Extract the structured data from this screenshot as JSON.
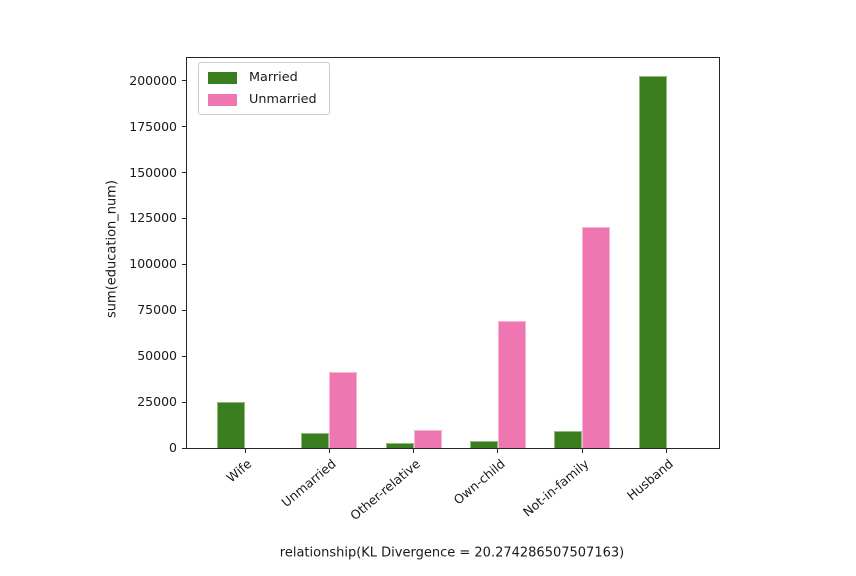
{
  "figure": {
    "background": "#ffffff",
    "text_color": "#1a1a1a",
    "spine_color": "#262626"
  },
  "chart_data": {
    "type": "bar",
    "title": "",
    "xlabel": "relationship(KL Divergence = 20.274286507507163)",
    "ylabel": "sum(education_num)",
    "categories": [
      "Wife",
      "Unmarried",
      "Other-relative",
      "Own-child",
      "Not-in-family",
      "Husband"
    ],
    "series": [
      {
        "name": "Married",
        "color": "#3a7e1f",
        "values": [
          25000,
          8000,
          3000,
          3600,
          9000,
          202800
        ]
      },
      {
        "name": "Unmarried",
        "color": "#ee77b1",
        "values": [
          0,
          41500,
          10000,
          69000,
          120500,
          0
        ]
      }
    ],
    "yticks": [
      0,
      25000,
      50000,
      75000,
      100000,
      125000,
      150000,
      175000,
      200000
    ],
    "ylim": [
      0,
      212400
    ],
    "grid": false,
    "legend_position": "upper left",
    "xtick_rotation": 40
  }
}
